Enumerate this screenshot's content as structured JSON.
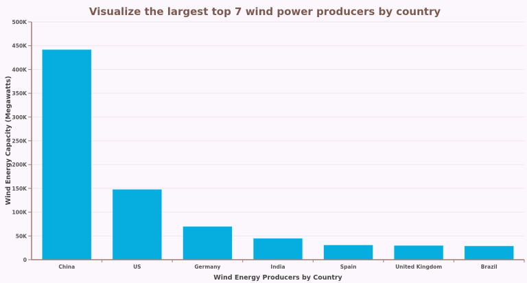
{
  "chart_data": {
    "type": "bar",
    "title": "Visualize the largest top 7 wind power producers by country",
    "xlabel": "Wind Energy Producers by Country",
    "ylabel": "Wind Energy Capacity (Megawatts)",
    "categories": [
      "China",
      "US",
      "Germany",
      "India",
      "Spain",
      "United Kingdom",
      "Brazil"
    ],
    "values": [
      442000,
      148000,
      70000,
      45000,
      31000,
      30000,
      29000
    ],
    "ylim": [
      0,
      500000
    ],
    "yticks": [
      "0",
      "50K",
      "100K",
      "150K",
      "200K",
      "250K",
      "300K",
      "350K",
      "400K",
      "450K",
      "500K"
    ],
    "grid": true,
    "colors": {
      "bar": "#06aedf",
      "axis": "#9e7b73",
      "title": "#7c5a4f"
    }
  }
}
